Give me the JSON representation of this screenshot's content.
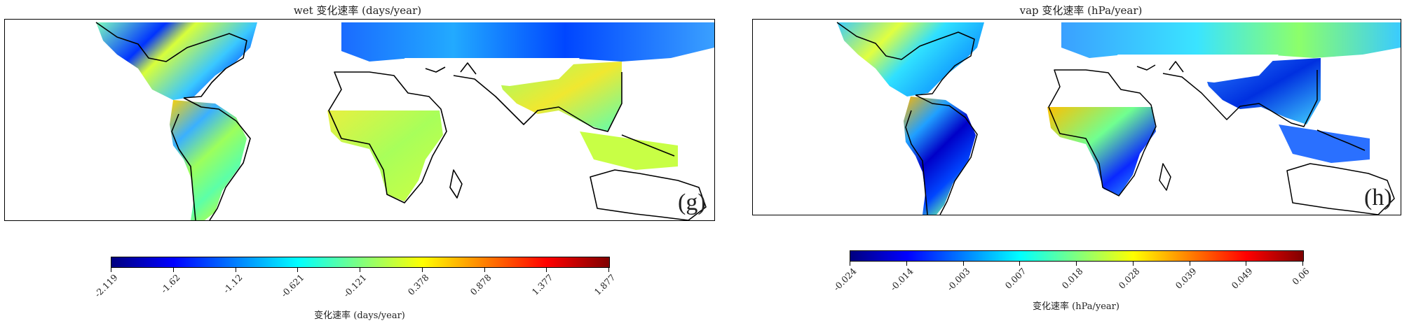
{
  "panels": [
    {
      "id": "g",
      "title": "wet 变化速率 (days/year)",
      "label": "(g)",
      "colorbar": {
        "ticks": [
          "-2.119",
          "-1.62",
          "-1.12",
          "-0.621",
          "-0.121",
          "0.378",
          "0.878",
          "1.377",
          "1.877"
        ],
        "label": "变化速率 (days/year)"
      }
    },
    {
      "id": "h",
      "title": "vap 变化速率 (hPa/year)",
      "label": "(h)",
      "colorbar": {
        "ticks": [
          "-0.024",
          "-0.014",
          "-0.003",
          "0.007",
          "0.018",
          "0.028",
          "0.039",
          "0.049",
          "0.06"
        ],
        "label": "变化速率 (hPa/year)"
      }
    }
  ],
  "colormap": [
    "#00007f",
    "#0000ff",
    "#007fff",
    "#00ffff",
    "#7fff7f",
    "#ffff00",
    "#ff7f00",
    "#ff0000",
    "#7f0000"
  ],
  "land_fill_background": "#ffffff",
  "coast_color": "#000000"
}
